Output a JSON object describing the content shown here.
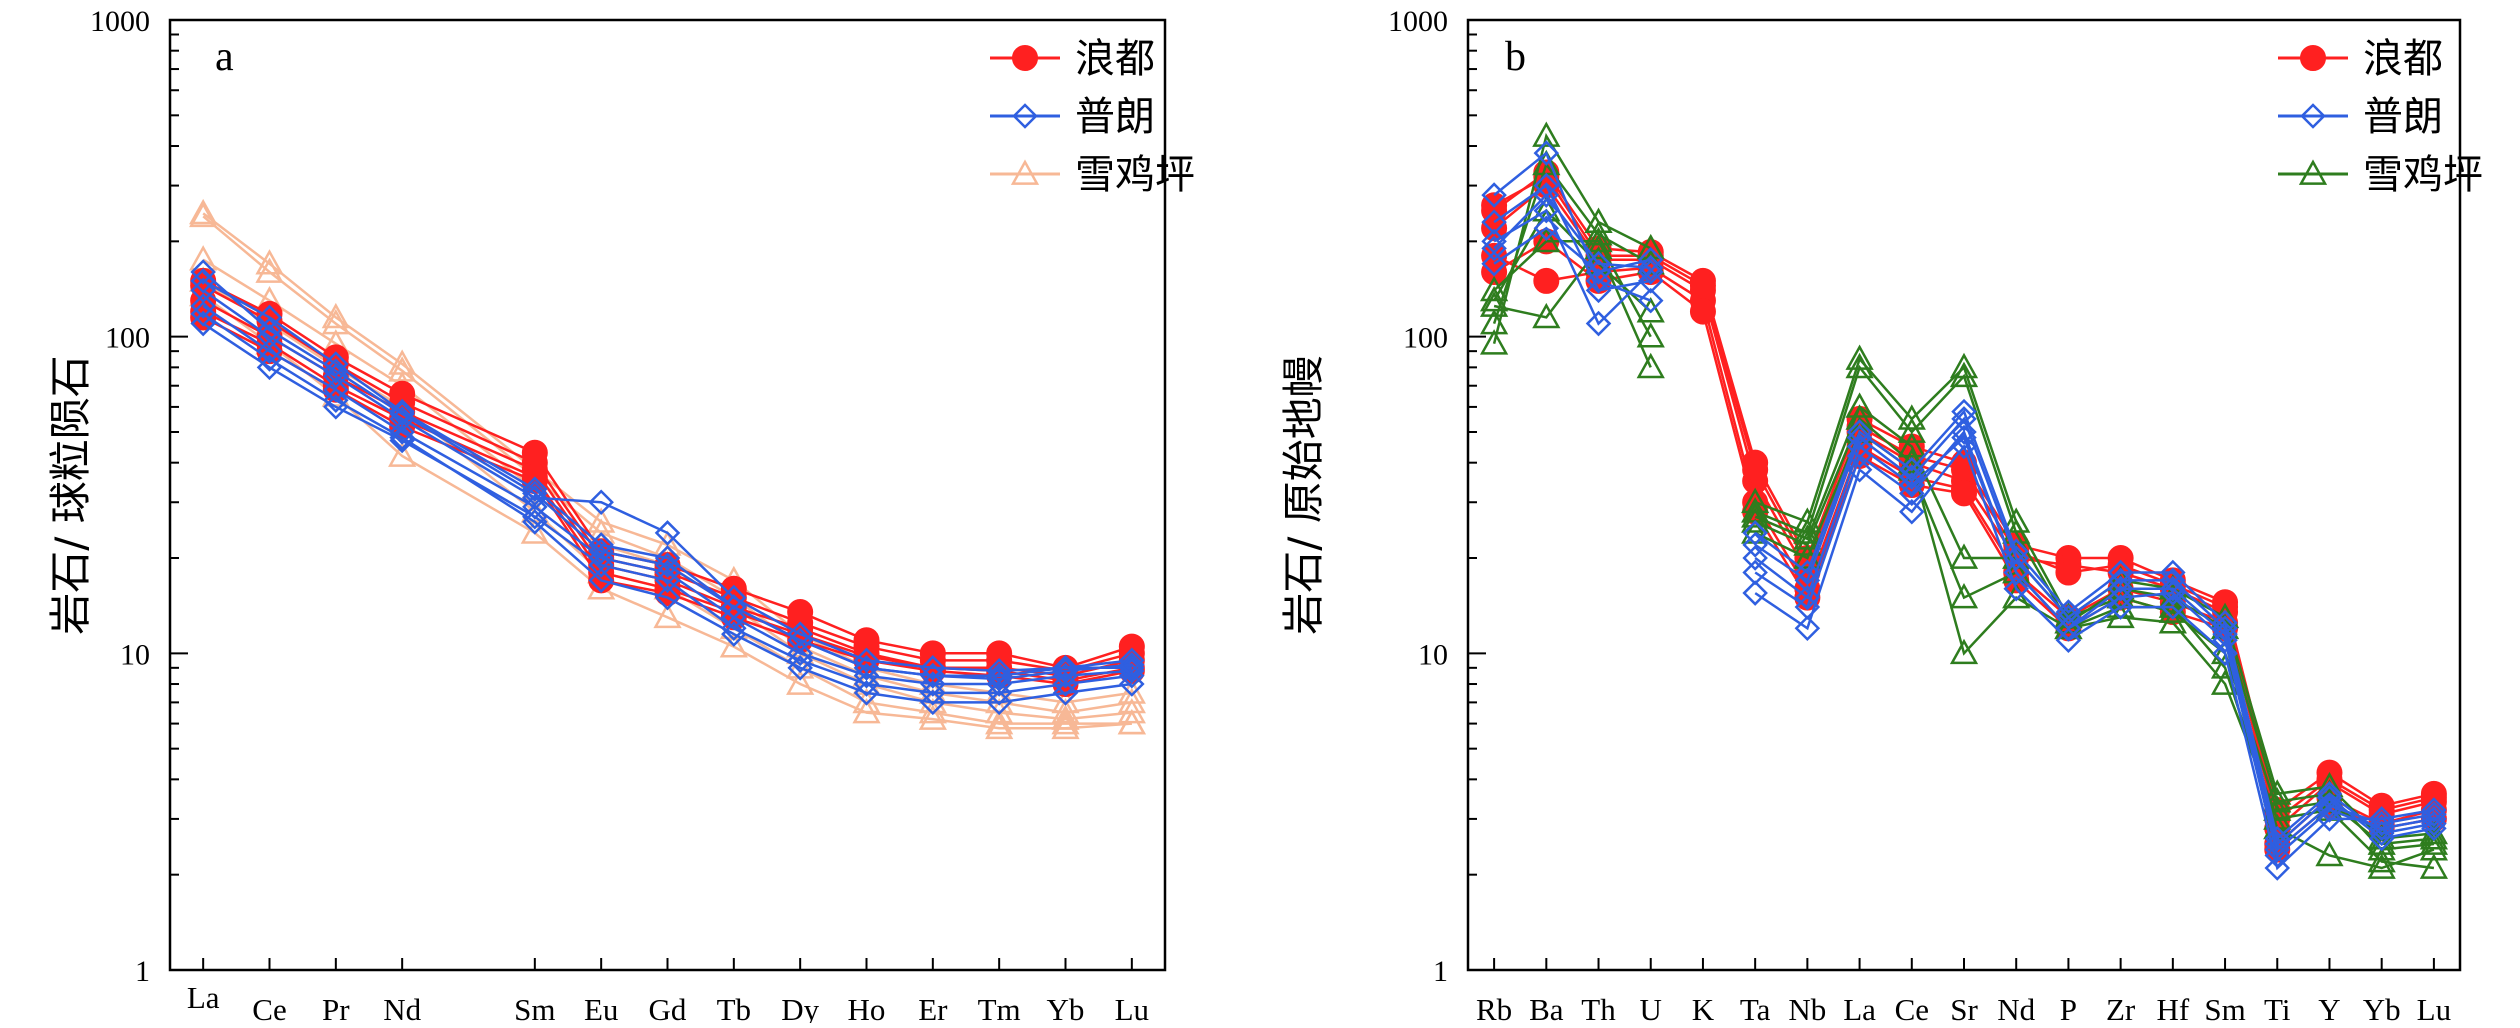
{
  "chart_data": [
    {
      "type": "line",
      "panel_label": "a",
      "title": "",
      "ylabel": "岩石/ 球粒陨石",
      "xlabel": "",
      "yscale": "log",
      "ylim": [
        1,
        1000
      ],
      "yticks": [
        "1",
        "10",
        "100",
        "1000"
      ],
      "categories": [
        "La",
        "Ce",
        "Pr",
        "Nd",
        "Sm",
        "Eu",
        "Gd",
        "Tb",
        "Dy",
        "Ho",
        "Er",
        "Tm",
        "Yb",
        "Lu"
      ],
      "x_positions": [
        1,
        2,
        3,
        4,
        6,
        7,
        8,
        9,
        10,
        11,
        12,
        13,
        14,
        15
      ],
      "legend_position": "top-right",
      "grid": false,
      "series": [
        {
          "name": "浪都",
          "color": "#ff2020",
          "marker": "circle",
          "values": [
            [
              145,
              112,
              82,
              62,
              40,
              20,
              18,
              15,
              12.5,
              10.5,
              9.5,
              9.5,
              8.8,
              10
            ],
            [
              130,
              100,
              75,
              58,
              38,
              19,
              17,
              14,
              12,
              10,
              9,
              9,
              8.5,
              9.5
            ],
            [
              120,
              95,
              70,
              55,
              36,
              18,
              16,
              13.5,
              11.5,
              9.8,
              9,
              8.8,
              8.2,
              9
            ],
            [
              150,
              118,
              86,
              66,
              43,
              21,
              19,
              16,
              13.5,
              11,
              10,
              10,
              9,
              10.5
            ],
            [
              115,
              90,
              68,
              52,
              35,
              17,
              15.5,
              13,
              11,
              9.5,
              8.8,
              8.5,
              8,
              8.8
            ]
          ]
        },
        {
          "name": "普朗",
          "color": "#2f5fe0",
          "marker": "diamond",
          "values": [
            [
              150,
              115,
              82,
              58,
              33,
              22,
              20,
              14,
              11,
              9,
              8.5,
              8.5,
              9,
              9.5
            ],
            [
              110,
              80,
              60,
              47,
              27,
              19,
              17,
              12,
              9.5,
              8,
              7.5,
              7.5,
              8,
              8.5
            ],
            [
              140,
              100,
              75,
              55,
              31,
              30,
              24,
              15,
              11.5,
              9.5,
              9,
              8.8,
              9,
              9
            ],
            [
              125,
              90,
              68,
              50,
              29,
              20,
              18,
              13,
              10,
              8.5,
              8,
              8,
              8.5,
              8.8
            ],
            [
              160,
              105,
              78,
              57,
              32,
              21,
              19,
              14,
              11,
              9,
              8.5,
              8.3,
              8.8,
              9.2
            ],
            [
              118,
              85,
              63,
              48,
              26,
              17,
              15,
              11.5,
              9,
              7.5,
              7,
              7,
              7.5,
              8
            ]
          ]
        },
        {
          "name": "雪鸡坪",
          "color": "#f7b896",
          "marker": "triangle",
          "values": [
            [
              245,
              170,
              115,
              82,
              38,
              26,
              22,
              17,
              11.5,
              9,
              8,
              7.5,
              7,
              7.5
            ],
            [
              240,
              160,
              110,
              78,
              36,
              24,
              20,
              15,
              10.5,
              8.5,
              7.5,
              7,
              6.5,
              7
            ],
            [
              175,
              130,
              95,
              70,
              33,
              22,
              19,
              14,
              10,
              8,
              7,
              6.5,
              6.2,
              6.5
            ],
            [
              150,
              110,
              80,
              60,
              28,
              18,
              16,
              12,
              9,
              7,
              6.5,
              6,
              6,
              6
            ],
            [
              135,
              95,
              65,
              42,
              24,
              16,
              13,
              10.5,
              8,
              6.5,
              6.2,
              5.8,
              5.8,
              6
            ]
          ]
        }
      ]
    },
    {
      "type": "line",
      "panel_label": "b",
      "title": "",
      "ylabel": "岩石/ 原始地幔",
      "xlabel": "",
      "yscale": "log",
      "ylim": [
        1,
        1000
      ],
      "yticks": [
        "1",
        "10",
        "100",
        "1000"
      ],
      "categories": [
        "Rb",
        "Ba",
        "Th",
        "U",
        "K",
        "Ta",
        "Nb",
        "La",
        "Ce",
        "Sr",
        "Nd",
        "P",
        "Zr",
        "Hf",
        "Sm",
        "Ti",
        "Y",
        "Yb",
        "Lu"
      ],
      "x_positions": [
        1,
        2,
        3,
        4,
        5,
        6,
        7,
        8,
        9,
        10,
        11,
        12,
        13,
        14,
        15,
        16,
        17,
        18,
        19
      ],
      "legend_position": "top-right",
      "grid": false,
      "series": [
        {
          "name": "浪都",
          "color": "#ff2020",
          "marker": "circle",
          "values": [
            [
              250,
              330,
              190,
              185,
              150,
              40,
              20,
              55,
              45,
              40,
              22,
              20,
              20,
              17,
              14.5,
              3.2,
              4.2,
              3.3,
              3.6
            ],
            [
              220,
              300,
              175,
              175,
              140,
              35,
              18,
              50,
              40,
              35,
              20,
              19,
              18,
              16,
              13.5,
              2.8,
              3.9,
              3.1,
              3.4
            ],
            [
              180,
              150,
              160,
              165,
              130,
              30,
              16,
              45,
              36,
              33,
              18,
              13,
              16,
              14.5,
              12.5,
              2.5,
              3.5,
              2.9,
              3.2
            ],
            [
              260,
              320,
              180,
              180,
              145,
              38,
              19,
              52,
              42,
              38,
              21,
              18,
              19,
              16.5,
              14,
              3,
              4,
              3.2,
              3.5
            ],
            [
              160,
              200,
              150,
              160,
              120,
              28,
              15,
              42,
              34,
              32,
              17,
              12,
              15,
              13.5,
              12,
              2.4,
              3.3,
              2.8,
              3
            ]
          ]
        },
        {
          "name": "普朗",
          "color": "#2f5fe0",
          "marker": "diamond",
          "values": [
            [
              280,
              380,
              150,
              130,
              null,
              15.5,
              12,
              38,
              28,
              45,
              16,
              11,
              14,
              14,
              10,
              2.1,
              3,
              3,
              3.2
            ],
            [
              200,
              250,
              110,
              160,
              null,
              18,
              14,
              42,
              32,
              50,
              18,
              12,
              15,
              15.5,
              11,
              2.3,
              3.2,
              2.8,
              3
            ],
            [
              170,
              220,
              160,
              175,
              null,
              22,
              17,
              48,
              36,
              55,
              20,
              13,
              17,
              17,
              12,
              2.5,
              3.5,
              2.6,
              2.8
            ],
            [
              230,
              300,
              140,
              150,
              null,
              20,
              15,
              45,
              34,
              48,
              18,
              12,
              16,
              16,
              11.5,
              2.4,
              3.3,
              2.9,
              3.1
            ],
            [
              190,
              280,
              170,
              165,
              null,
              24,
              18,
              50,
              38,
              58,
              21,
              13.5,
              18,
              18,
              12.5,
              2.6,
              3.6,
              2.7,
              2.9
            ]
          ]
        },
        {
          "name": "雪鸡坪",
          "color": "#2e7d1e",
          "marker": "triangle",
          "values": [
            [
              95,
              430,
              230,
              190,
              null,
              30,
              26,
              85,
              55,
              80,
              26,
              13,
              17,
              16,
              13,
              3.6,
              3.8,
              2.6,
              2.7
            ],
            [
              110,
              350,
              210,
              170,
              null,
              28,
              24,
              80,
              50,
              75,
              24,
              12.5,
              16,
              15,
              12,
              3.4,
              3.6,
              2.4,
              2.5
            ],
            [
              125,
              115,
              190,
              80,
              null,
              26,
              22,
              55,
              40,
              10,
              15,
              12,
              13,
              12.5,
              8,
              3,
              3.2,
              2.2,
              2.1
            ],
            [
              130,
              250,
              170,
              120,
              null,
              24,
              20,
              50,
              38,
              15,
              18,
              12,
              14,
              14,
              9,
              2.8,
              2.3,
              2.1,
              2.4
            ],
            [
              140,
              200,
              200,
              100,
              null,
              27,
              23,
              60,
              45,
              20,
              20,
              13,
              15,
              13.5,
              10,
              3.2,
              3.4,
              2.5,
              2.6
            ]
          ]
        }
      ]
    }
  ]
}
